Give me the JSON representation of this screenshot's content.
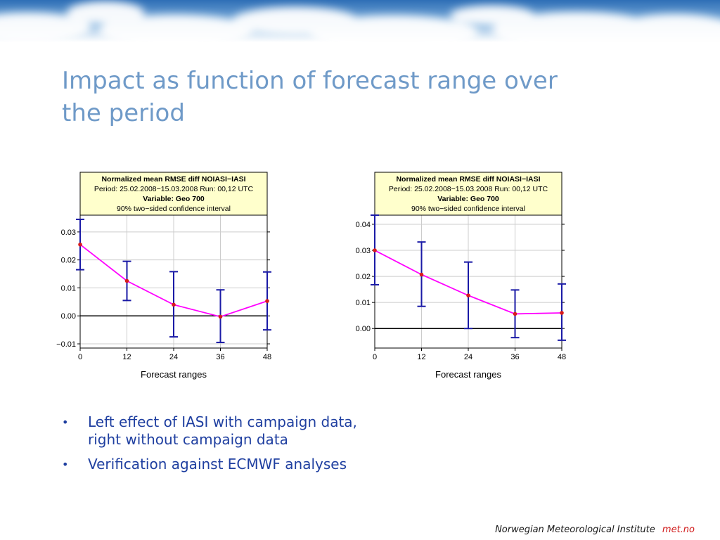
{
  "slide": {
    "title_lines": [
      "Impact as function of forecast range over",
      "the period"
    ],
    "bullets": [
      {
        "lines": [
          "Left effect of IASI with campaign data,",
          "right without campaign data"
        ]
      },
      {
        "lines": [
          "Verification against ECMWF analyses"
        ]
      }
    ],
    "footer": {
      "org": "Norwegian Meteorological Institute",
      "brand": "met.no"
    }
  },
  "colors": {
    "title": "#6f9ac8",
    "bullet_text": "#1f3fa0",
    "brand": "#d01a1a",
    "header_fill": "#ffffcc",
    "line": "#ff00ff",
    "marker": "#d81b1b",
    "errorbar": "#1a1aa6",
    "zero_line": "#000000",
    "grid": "#cccccc"
  },
  "chart_data": [
    {
      "type": "line",
      "header_lines": [
        "Normalized mean RMSE diff NOIASI−IASI",
        "Period: 25.02.2008−15.03.2008  Run: 00,12 UTC",
        "Variable: Geo 700",
        "90% two−sided confidence interval"
      ],
      "xlabel": "Forecast ranges",
      "x": [
        0,
        12,
        24,
        36,
        48
      ],
      "xticks": [
        "0",
        "12",
        "24",
        "36",
        "48"
      ],
      "yticks": [
        -0.01,
        0.0,
        0.01,
        0.02,
        0.03
      ],
      "ytick_labels": [
        "−0.01",
        "0.00",
        "0.01",
        "0.02",
        "0.03"
      ],
      "ylim": [
        -0.0115,
        0.036
      ],
      "series": [
        {
          "values": [
            0.0255,
            0.0125,
            0.004,
            -0.0003,
            0.0053
          ],
          "ci_low": [
            0.0165,
            0.0055,
            -0.0075,
            -0.0095,
            -0.005
          ],
          "ci_high": [
            0.0345,
            0.0195,
            0.0158,
            0.0093,
            0.0157
          ]
        }
      ],
      "grid": true
    },
    {
      "type": "line",
      "header_lines": [
        "Normalized mean RMSE diff NOIASI−IASI",
        "Period: 25.02.2008−15.03.2008  Run: 00,12 UTC",
        "Variable: Geo 700",
        "90% two−sided confidence interval"
      ],
      "xlabel": "Forecast ranges",
      "x": [
        0,
        12,
        24,
        36,
        48
      ],
      "xticks": [
        "0",
        "12",
        "24",
        "36",
        "48"
      ],
      "yticks": [
        0.0,
        0.01,
        0.02,
        0.03,
        0.04
      ],
      "ytick_labels": [
        "0.00",
        "0.01",
        "0.02",
        "0.03",
        "0.04"
      ],
      "ylim": [
        -0.0075,
        0.0435
      ],
      "series": [
        {
          "values": [
            0.03,
            0.0207,
            0.0127,
            0.0056,
            0.006
          ],
          "ci_low": [
            0.0168,
            0.0085,
            0.0,
            -0.0035,
            -0.0045
          ],
          "ci_high": [
            0.0435,
            0.0332,
            0.0255,
            0.0148,
            0.0171
          ]
        }
      ],
      "grid": true
    }
  ]
}
